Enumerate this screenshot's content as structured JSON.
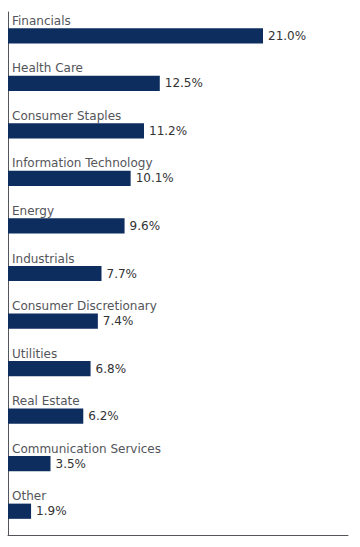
{
  "chart_data": {
    "type": "bar",
    "orientation": "horizontal",
    "categories": [
      "Financials",
      "Health Care",
      "Consumer Staples",
      "Information Technology",
      "Energy",
      "Industrials",
      "Consumer Discretionary",
      "Utilities",
      "Real Estate",
      "Communication Services",
      "Other"
    ],
    "values": [
      21.0,
      12.5,
      11.2,
      10.1,
      9.6,
      7.7,
      7.4,
      6.8,
      6.2,
      3.5,
      1.9
    ],
    "value_labels": [
      "21.0%",
      "12.5%",
      "11.2%",
      "10.1%",
      "9.6%",
      "7.7%",
      "7.4%",
      "6.8%",
      "6.2%",
      "3.5%",
      "1.9%"
    ],
    "data_labels": true,
    "color": "#0d2d5e",
    "xlim": [
      0,
      28
    ],
    "tick_labels": false,
    "grid": false
  }
}
